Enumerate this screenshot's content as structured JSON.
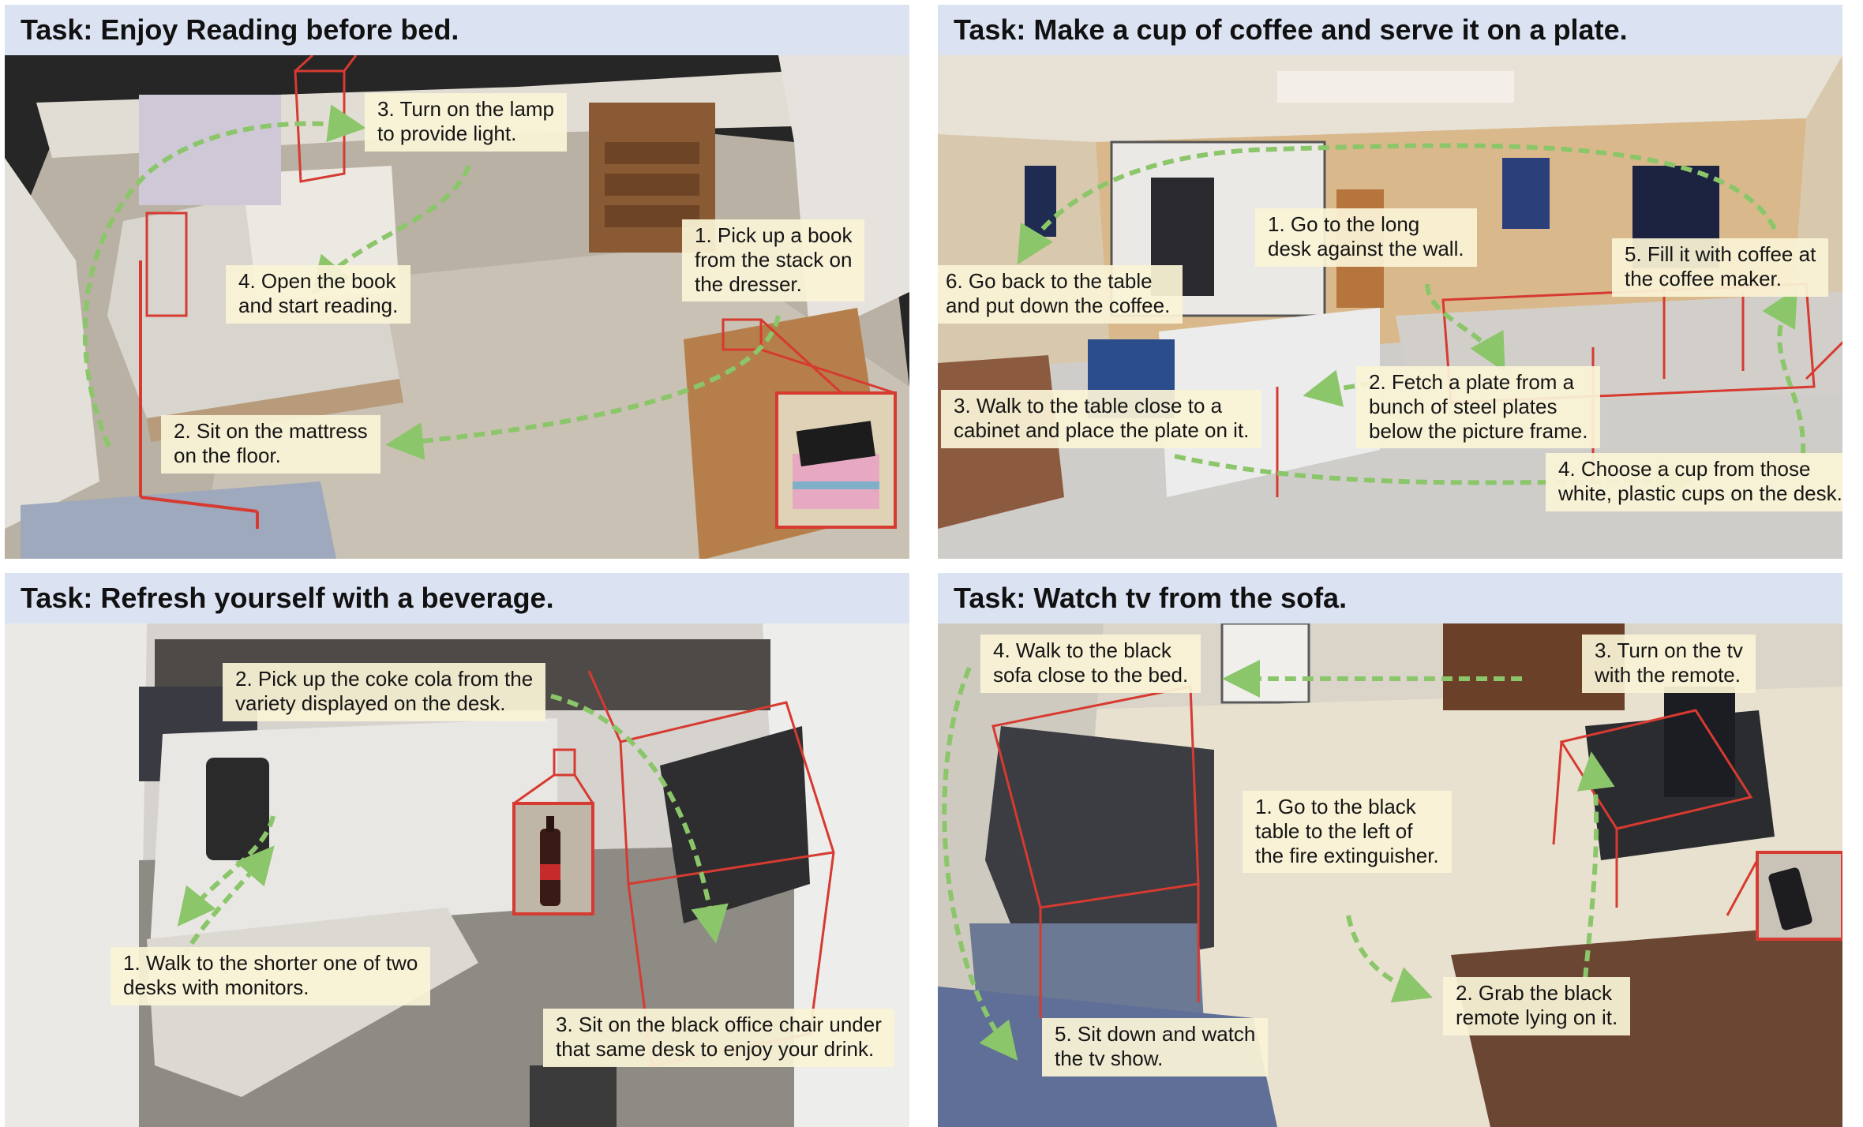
{
  "panels": [
    {
      "title": "Task: Enjoy Reading before bed.",
      "steps": [
        {
          "line1": "1. Pick up a book",
          "line2": "from the stack on",
          "line3": "the dresser."
        },
        {
          "line1": "2. Sit on the mattress",
          "line2": "on the floor."
        },
        {
          "line1": "3. Turn on the lamp",
          "line2": "to provide light."
        },
        {
          "line1": "4. Open the book",
          "line2": "and start reading."
        }
      ]
    },
    {
      "title": "Task: Make a cup of coffee and serve it on a plate.",
      "steps": [
        {
          "line1": "1. Go to the long",
          "line2": "desk against the wall."
        },
        {
          "line1": "2. Fetch a plate from a",
          "line2": "bunch of steel plates",
          "line3": "below the picture frame."
        },
        {
          "line1": "3. Walk to the table close to a",
          "line2": "cabinet and place the plate on it."
        },
        {
          "line1": "4. Choose a cup from those",
          "line2": "white, plastic cups on the desk."
        },
        {
          "line1": "5. Fill it with coffee at",
          "line2": "the coffee maker."
        },
        {
          "line1": "6. Go back to the table",
          "line2": "and put down the coffee."
        }
      ]
    },
    {
      "title": "Task: Refresh yourself with a beverage.",
      "steps": [
        {
          "line1": "1. Walk to the shorter one of two",
          "line2": "desks with monitors."
        },
        {
          "line1": "2. Pick up the coke cola from the",
          "line2": "variety displayed on the desk."
        },
        {
          "line1": "3. Sit on the black office chair under",
          "line2": "that same desk to enjoy your drink."
        }
      ]
    },
    {
      "title": "Task: Watch tv from the sofa.",
      "steps": [
        {
          "line1": "1. Go to the black",
          "line2": "table to the left of",
          "line3": "the fire extinguisher."
        },
        {
          "line1": "2. Grab the black",
          "line2": "remote lying on it."
        },
        {
          "line1": "3. Turn on the tv",
          "line2": "with the remote."
        },
        {
          "line1": "4. Walk to the black",
          "line2": "sofa close to the bed."
        },
        {
          "line1": "5. Sit down and watch",
          "line2": "the tv show."
        }
      ]
    }
  ],
  "colors": {
    "header_bg": "#dbe3f3",
    "callout_bg": "#faf3d6",
    "path_arrow": "#8cc66a",
    "bounding_box": "#d63a30"
  }
}
